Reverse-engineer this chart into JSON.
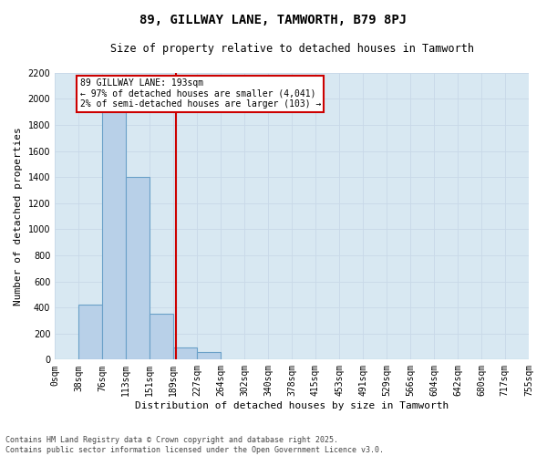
{
  "title": "89, GILLWAY LANE, TAMWORTH, B79 8PJ",
  "subtitle": "Size of property relative to detached houses in Tamworth",
  "xlabel": "Distribution of detached houses by size in Tamworth",
  "ylabel": "Number of detached properties",
  "property_size": 193,
  "annotation_line1": "89 GILLWAY LANE: 193sqm",
  "annotation_line2": "← 97% of detached houses are smaller (4,041)",
  "annotation_line3": "2% of semi-detached houses are larger (103) →",
  "footer_line1": "Contains HM Land Registry data © Crown copyright and database right 2025.",
  "footer_line2": "Contains public sector information licensed under the Open Government Licence v3.0.",
  "bin_edges": [
    0,
    38,
    76,
    113,
    151,
    189,
    227,
    264,
    302,
    340,
    378,
    415,
    453,
    491,
    529,
    566,
    604,
    642,
    680,
    717,
    755
  ],
  "bin_labels": [
    "0sqm",
    "38sqm",
    "76sqm",
    "113sqm",
    "151sqm",
    "189sqm",
    "227sqm",
    "264sqm",
    "302sqm",
    "340sqm",
    "378sqm",
    "415sqm",
    "453sqm",
    "491sqm",
    "529sqm",
    "566sqm",
    "604sqm",
    "642sqm",
    "680sqm",
    "717sqm",
    "755sqm"
  ],
  "bar_heights": [
    0,
    420,
    1950,
    1400,
    350,
    90,
    55,
    0,
    0,
    0,
    0,
    0,
    0,
    0,
    0,
    0,
    0,
    0,
    0,
    0
  ],
  "bar_color": "#b8d0e8",
  "bar_edge_color": "#6aa0c8",
  "red_line_color": "#cc0000",
  "annotation_box_edge_color": "#cc0000",
  "grid_color": "#c8d8e8",
  "background_color": "#d8e8f2",
  "ylim_max": 2200,
  "yticks": [
    0,
    200,
    400,
    600,
    800,
    1000,
    1200,
    1400,
    1600,
    1800,
    2000,
    2200
  ],
  "title_fontsize": 10,
  "subtitle_fontsize": 8.5,
  "tick_fontsize": 7,
  "ylabel_fontsize": 8,
  "xlabel_fontsize": 8,
  "footer_fontsize": 6
}
